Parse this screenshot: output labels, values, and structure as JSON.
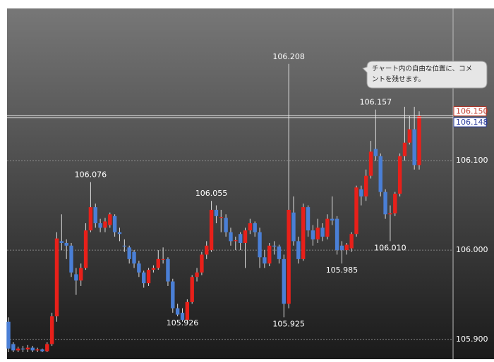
{
  "chart_data": {
    "type": "candlestick",
    "up_color": "#e8201a",
    "down_color": "#4a7fd6",
    "ylim": [
      105.886,
      106.27
    ],
    "yticks": [
      {
        "value": 105.9,
        "label": "105.900"
      },
      {
        "value": 106.0,
        "label": "106.000"
      },
      {
        "value": 106.1,
        "label": "106.100"
      }
    ],
    "grid": true,
    "open": [
      105.92,
      105.895,
      105.888,
      105.89,
      105.889,
      105.891,
      105.888,
      105.889,
      105.887,
      105.895,
      105.926,
      106.01,
      106.008,
      106.005,
      105.973,
      105.966,
      105.98,
      106.022,
      106.048,
      106.03,
      106.025,
      106.028,
      106.038,
      106.02,
      106.005,
      106.003,
      105.998,
      105.985,
      105.975,
      105.963,
      105.978,
      105.98,
      105.99,
      105.99,
      105.965,
      105.935,
      105.93,
      105.922,
      105.942,
      105.97,
      105.975,
      105.995,
      106.0,
      106.045,
      106.036,
      106.036,
      106.02,
      106.01,
      106.018,
      106.008,
      106.022,
      106.03,
      106.02,
      105.992,
      105.985,
      106.005,
      106.004,
      105.99,
      105.94,
      106.042,
      106.01,
      105.99,
      106.048,
      106.022,
      106.012,
      106.025,
      106.015,
      106.035,
      106.035,
      106.005,
      106.0,
      106.002,
      106.018,
      106.068,
      106.06,
      106.083,
      106.113,
      106.105,
      106.065,
      106.04,
      106.041,
      106.063,
      106.105,
      106.12,
      106.135,
      106.095
    ],
    "high": [
      105.925,
      105.897,
      105.892,
      105.893,
      105.894,
      105.893,
      105.891,
      105.89,
      105.897,
      105.93,
      106.02,
      106.04,
      106.012,
      106.008,
      105.98,
      105.985,
      106.03,
      106.076,
      106.052,
      106.035,
      106.036,
      106.042,
      106.04,
      106.025,
      106.012,
      106.005,
      106.0,
      105.988,
      105.977,
      105.98,
      105.983,
      106.0,
      106.003,
      105.992,
      105.968,
      105.94,
      105.935,
      105.945,
      105.972,
      105.98,
      105.998,
      106.01,
      106.055,
      106.05,
      106.045,
      106.04,
      106.025,
      106.015,
      106.02,
      106.025,
      106.035,
      106.032,
      106.025,
      106.0,
      106.008,
      106.01,
      106.006,
      105.995,
      106.208,
      106.06,
      106.015,
      106.052,
      106.05,
      106.028,
      106.035,
      106.03,
      106.04,
      106.06,
      106.038,
      106.01,
      106.008,
      106.02,
      106.072,
      106.072,
      106.09,
      106.122,
      106.157,
      106.108,
      106.068,
      106.05,
      106.065,
      106.108,
      106.16,
      106.15,
      106.16,
      106.155
    ],
    "low": [
      105.886,
      105.886,
      105.886,
      105.886,
      105.886,
      105.886,
      105.886,
      105.886,
      105.886,
      105.893,
      105.92,
      106.0,
      105.99,
      105.97,
      105.95,
      105.96,
      105.978,
      106.02,
      106.025,
      106.02,
      106.02,
      106.025,
      106.015,
      106.01,
      105.998,
      105.985,
      105.98,
      105.97,
      105.958,
      105.96,
      105.975,
      105.978,
      105.985,
      105.96,
      105.93,
      105.926,
      105.92,
      105.92,
      105.94,
      105.965,
      105.972,
      105.99,
      105.998,
      106.03,
      106.02,
      106.015,
      106.005,
      106.0,
      106.0,
      105.98,
      106.018,
      106.015,
      105.98,
      105.98,
      105.982,
      105.995,
      105.985,
      105.925,
      105.935,
      106.005,
      105.985,
      105.988,
      106.015,
      106.005,
      106.008,
      106.01,
      106.012,
      106.028,
      105.995,
      105.985,
      105.995,
      105.998,
      106.015,
      106.05,
      106.055,
      106.08,
      106.1,
      106.06,
      106.035,
      106.01,
      106.038,
      106.06,
      106.1,
      106.118,
      106.09,
      106.09
    ],
    "close": [
      105.89,
      105.888,
      105.89,
      105.889,
      105.891,
      105.888,
      105.889,
      105.887,
      105.895,
      105.926,
      106.013,
      106.008,
      106.005,
      105.975,
      105.966,
      105.98,
      106.022,
      106.048,
      106.03,
      106.025,
      106.032,
      106.04,
      106.02,
      106.018,
      106.004,
      105.99,
      105.985,
      105.975,
      105.963,
      105.978,
      105.98,
      105.99,
      105.99,
      105.965,
      105.935,
      105.928,
      105.922,
      105.942,
      105.97,
      105.975,
      105.995,
      106.005,
      106.045,
      106.038,
      106.037,
      106.02,
      106.01,
      106.011,
      106.008,
      106.022,
      106.03,
      106.02,
      105.992,
      105.985,
      106.005,
      106.004,
      105.99,
      105.94,
      106.045,
      106.01,
      105.99,
      106.048,
      106.022,
      106.012,
      106.025,
      106.015,
      106.035,
      106.033,
      106.0,
      106.0,
      106.006,
      106.018,
      106.07,
      106.06,
      106.083,
      106.11,
      106.105,
      106.065,
      106.04,
      106.041,
      106.063,
      106.105,
      106.12,
      106.135,
      106.095,
      106.15
    ],
    "annotations": [
      {
        "value": 106.208,
        "label": "106.208"
      },
      {
        "value": 106.076,
        "label": "106.076"
      },
      {
        "value": 106.055,
        "label": "106.055"
      },
      {
        "value": 105.926,
        "label": "105.926"
      },
      {
        "value": 105.925,
        "label": "105.925"
      },
      {
        "value": 106.157,
        "label": "106.157"
      },
      {
        "value": 106.01,
        "label": "106.010"
      },
      {
        "value": 105.985,
        "label": "105.985"
      }
    ],
    "price_lines": [
      {
        "value": 106.15,
        "label": "106.150",
        "color": "#c0392b"
      },
      {
        "value": 106.148,
        "label": "106.148",
        "color": "#2a3c9c"
      }
    ],
    "comment": [
      "チャート内の自由な位置に、コメ",
      "ントを残せます。"
    ]
  }
}
